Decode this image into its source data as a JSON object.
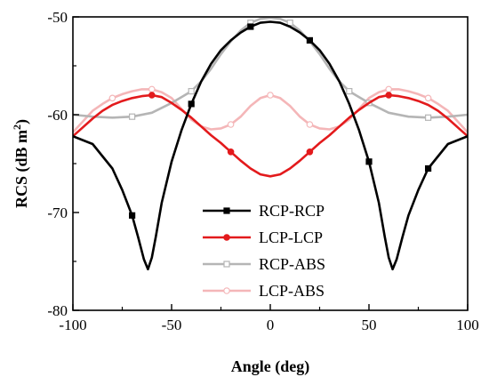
{
  "chart_data": {
    "type": "line",
    "xlabel": "Angle (deg)",
    "ylabel": "RCS (dB m",
    "ylabel_sup": "2",
    "ylabel_close": ")",
    "xlim": [
      -100,
      100
    ],
    "ylim": [
      -80,
      -50
    ],
    "xticks": [
      -100,
      -50,
      0,
      50,
      100
    ],
    "yticks": [
      -80,
      -70,
      -60,
      -50
    ],
    "legend_position": "bottom-center",
    "series": [
      {
        "name": "RCP-RCP",
        "color": "#000000",
        "marker": "square-filled",
        "x": [
          -100,
          -90,
          -80,
          -75,
          -70,
          -67,
          -64,
          -62,
          -60,
          -58,
          -55,
          -50,
          -45,
          -40,
          -35,
          -30,
          -25,
          -20,
          -15,
          -10,
          -5,
          0,
          5,
          10,
          15,
          20,
          25,
          30,
          35,
          40,
          45,
          50,
          55,
          58,
          60,
          62,
          64,
          67,
          70,
          75,
          80,
          90,
          100
        ],
        "y": [
          -62.2,
          -63.0,
          -65.5,
          -67.7,
          -70.3,
          -72.5,
          -74.8,
          -75.8,
          -74.6,
          -72.5,
          -69.0,
          -64.8,
          -61.6,
          -58.9,
          -56.6,
          -54.8,
          -53.4,
          -52.4,
          -51.6,
          -51.0,
          -50.6,
          -50.5,
          -50.6,
          -51.0,
          -51.6,
          -52.4,
          -53.4,
          -54.8,
          -56.6,
          -58.9,
          -61.6,
          -64.8,
          -69.0,
          -72.5,
          -74.6,
          -75.8,
          -74.8,
          -72.5,
          -70.3,
          -67.7,
          -65.5,
          -63.0,
          -62.2
        ],
        "marker_x": [
          -70,
          -40,
          -10,
          20,
          50,
          80
        ]
      },
      {
        "name": "LCP-LCP",
        "color": "#e31a1c",
        "marker": "circle-filled",
        "x": [
          -100,
          -95,
          -90,
          -85,
          -80,
          -75,
          -70,
          -65,
          -60,
          -55,
          -50,
          -45,
          -40,
          -35,
          -30,
          -25,
          -20,
          -15,
          -10,
          -5,
          0,
          5,
          10,
          15,
          20,
          25,
          30,
          35,
          40,
          45,
          50,
          55,
          60,
          65,
          70,
          75,
          80,
          85,
          90,
          95,
          100
        ],
        "y": [
          -62.2,
          -61.3,
          -60.4,
          -59.6,
          -59.0,
          -58.6,
          -58.3,
          -58.1,
          -58.0,
          -58.2,
          -58.8,
          -59.5,
          -60.3,
          -61.2,
          -62.1,
          -62.9,
          -63.8,
          -64.7,
          -65.5,
          -66.1,
          -66.3,
          -66.1,
          -65.5,
          -64.7,
          -63.8,
          -62.9,
          -62.1,
          -61.2,
          -60.3,
          -59.5,
          -58.8,
          -58.2,
          -58.0,
          -58.1,
          -58.3,
          -58.6,
          -59.0,
          -59.6,
          -60.4,
          -61.3,
          -62.2
        ],
        "marker_x": [
          -60,
          -20,
          20,
          60
        ]
      },
      {
        "name": "RCP-ABS",
        "color": "#b5b5b5",
        "marker": "square-open",
        "x": [
          -100,
          -90,
          -80,
          -70,
          -60,
          -55,
          -50,
          -45,
          -40,
          -35,
          -30,
          -25,
          -20,
          -15,
          -10,
          -5,
          0,
          5,
          10,
          15,
          20,
          25,
          30,
          35,
          40,
          45,
          50,
          55,
          60,
          70,
          80,
          90,
          100
        ],
        "y": [
          -60.0,
          -60.2,
          -60.3,
          -60.2,
          -59.8,
          -59.3,
          -58.8,
          -58.2,
          -57.6,
          -56.6,
          -55.3,
          -53.8,
          -52.5,
          -51.4,
          -50.6,
          -50.2,
          -50.1,
          -50.2,
          -50.6,
          -51.4,
          -52.5,
          -53.8,
          -55.3,
          -56.6,
          -57.6,
          -58.2,
          -58.8,
          -59.3,
          -59.8,
          -60.2,
          -60.3,
          -60.2,
          -60.0
        ],
        "marker_x": [
          -70,
          -40,
          -10,
          10,
          40,
          50,
          80
        ]
      },
      {
        "name": "LCP-ABS",
        "color": "#f4b6b8",
        "marker": "circle-open",
        "x": [
          -100,
          -95,
          -90,
          -85,
          -80,
          -75,
          -70,
          -65,
          -60,
          -55,
          -50,
          -45,
          -40,
          -35,
          -30,
          -25,
          -20,
          -15,
          -10,
          -5,
          0,
          5,
          10,
          15,
          20,
          25,
          30,
          35,
          40,
          45,
          50,
          55,
          60,
          65,
          70,
          75,
          80,
          85,
          90,
          95,
          100
        ],
        "y": [
          -61.8,
          -60.7,
          -59.6,
          -58.9,
          -58.3,
          -57.9,
          -57.6,
          -57.4,
          -57.4,
          -57.7,
          -58.3,
          -59.4,
          -60.5,
          -61.2,
          -61.5,
          -61.4,
          -61.0,
          -60.2,
          -59.1,
          -58.3,
          -58.0,
          -58.3,
          -59.1,
          -60.2,
          -61.0,
          -61.4,
          -61.5,
          -61.2,
          -60.5,
          -59.4,
          -58.3,
          -57.7,
          -57.4,
          -57.4,
          -57.6,
          -57.9,
          -58.3,
          -58.9,
          -59.6,
          -60.7,
          -61.8
        ],
        "marker_x": [
          -80,
          -60,
          -20,
          0,
          20,
          60,
          80
        ]
      }
    ]
  }
}
